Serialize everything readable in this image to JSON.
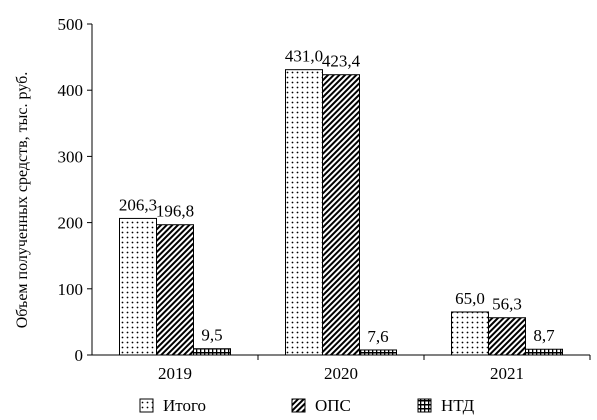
{
  "chart_data": {
    "type": "bar",
    "title": "",
    "xlabel": "",
    "ylabel": "Объем полученных средств, тыс. руб.",
    "ylim": [
      0,
      500
    ],
    "yticks": [
      0,
      100,
      200,
      300,
      400,
      500
    ],
    "categories": [
      "2019",
      "2020",
      "2021"
    ],
    "series": [
      {
        "name": "Итого",
        "pattern": "dots",
        "values": [
          206.3,
          431.0,
          65.0
        ],
        "labels": [
          "206,3",
          "431,0",
          "65,0"
        ]
      },
      {
        "name": "ОПС",
        "pattern": "diagonal",
        "values": [
          196.8,
          423.4,
          56.3
        ],
        "labels": [
          "196,8",
          "423,4",
          "56,3"
        ]
      },
      {
        "name": "НТД",
        "pattern": "grid",
        "values": [
          9.5,
          7.6,
          8.7
        ],
        "labels": [
          "9,5",
          "7,6",
          "8,7"
        ]
      }
    ],
    "legend_position": "bottom",
    "grid": false
  }
}
